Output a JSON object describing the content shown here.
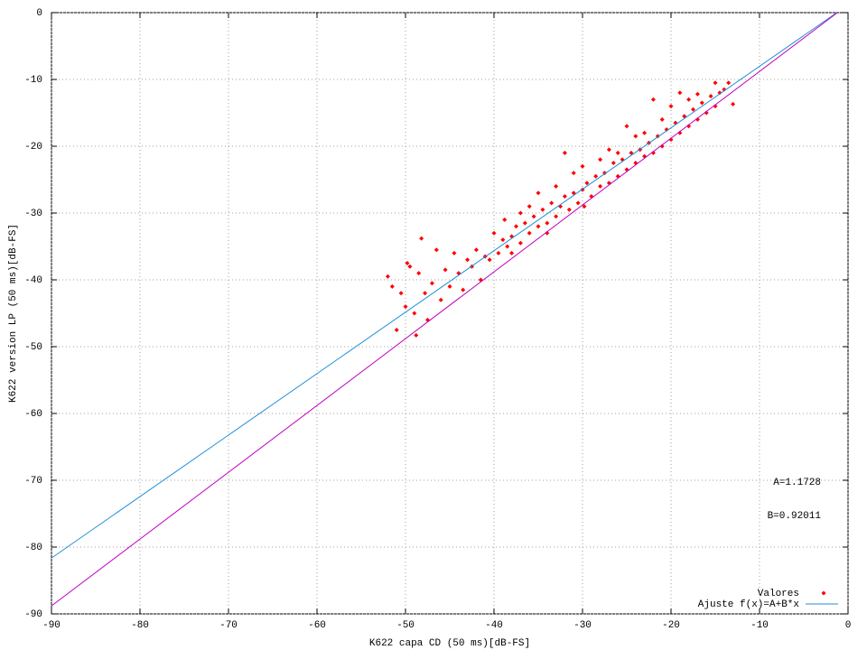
{
  "chart_data": {
    "type": "scatter",
    "xlabel": "K622 capa CD (50 ms)[dB-FS]",
    "ylabel": "K622 version LP (50 ms)[dB-FS]",
    "xlim": [
      -90,
      0
    ],
    "ylim": [
      -90,
      0
    ],
    "xticks": [
      -90,
      -80,
      -70,
      -60,
      -50,
      -40,
      -30,
      -20,
      -10,
      0
    ],
    "yticks": [
      -90,
      -80,
      -70,
      -60,
      -50,
      -40,
      -30,
      -20,
      -10,
      0
    ],
    "grid": true,
    "legend": "bottom-right",
    "annotations": [
      "A=1.1728",
      "B=0.92011"
    ],
    "series": [
      {
        "name": "Valores",
        "mode": "markers",
        "color": "#ff0000",
        "x": [
          -52,
          -51.5,
          -51,
          -50.5,
          -50,
          -49.8,
          -49.5,
          -49,
          -48.8,
          -48.5,
          -48.2,
          -47.8,
          -47.5,
          -47,
          -46.5,
          -46,
          -45.5,
          -45,
          -44.5,
          -44,
          -43.5,
          -43,
          -42.5,
          -42,
          -41.5,
          -41,
          -40.5,
          -40,
          -39.5,
          -39,
          -38.8,
          -38.5,
          -38,
          -37.5,
          -37,
          -36.5,
          -36,
          -35.5,
          -35,
          -34.5,
          -34,
          -33.5,
          -33,
          -32.5,
          -32,
          -31.5,
          -31,
          -30.5,
          -30,
          -29.8,
          -29.5,
          -29,
          -28.5,
          -28,
          -27.5,
          -27,
          -26.5,
          -26,
          -25.5,
          -25,
          -24.5,
          -24,
          -23.5,
          -23,
          -22.5,
          -22,
          -21.5,
          -21,
          -20.5,
          -20,
          -19.5,
          -19,
          -18.5,
          -18,
          -17.5,
          -17,
          -16.5,
          -16,
          -15.5,
          -15,
          -14.5,
          -14,
          -13.5,
          -13,
          -32,
          -22,
          -25,
          -28,
          -35,
          -31,
          -20,
          -19,
          -24,
          -27,
          -33,
          -36,
          -30,
          -37,
          -38,
          -34,
          -26,
          -21,
          -23,
          -18,
          -17,
          -15
        ],
        "values": [
          -39.5,
          -41,
          -47.5,
          -42,
          -44,
          -37.5,
          -38,
          -45,
          -48.3,
          -39,
          -33.8,
          -42,
          -46,
          -40.5,
          -35.5,
          -43,
          -38.5,
          -41,
          -36,
          -39,
          -41.5,
          -37,
          -38,
          -35.5,
          -40,
          -36.5,
          -37,
          -33,
          -36,
          -34,
          -31,
          -35,
          -33.5,
          -32,
          -34.5,
          -31.5,
          -33,
          -30.5,
          -32,
          -29.5,
          -31.5,
          -28.5,
          -30.5,
          -29,
          -27.5,
          -29.5,
          -27,
          -28.5,
          -26.5,
          -29,
          -25.5,
          -27.5,
          -24.5,
          -26,
          -24,
          -25.5,
          -22.5,
          -24.5,
          -22,
          -23.5,
          -21,
          -22.5,
          -20.5,
          -21.5,
          -19.5,
          -21,
          -18.5,
          -20,
          -17.5,
          -19,
          -16.5,
          -18,
          -15.5,
          -17,
          -14.5,
          -16,
          -13.5,
          -15,
          -12.5,
          -14,
          -12,
          -11.5,
          -10.5,
          -13.7,
          -21,
          -13,
          -17,
          -22,
          -27,
          -24,
          -14,
          -12,
          -18.5,
          -20.5,
          -26,
          -29,
          -23,
          -30,
          -36,
          -33,
          -21,
          -16,
          -18,
          -13,
          -12.2,
          -10.5
        ]
      },
      {
        "name": "Ajuste f(x)=A+B*x",
        "mode": "line",
        "color": "#1f8fd8",
        "x": [
          -90,
          -1.2746
        ],
        "values": [
          -81.64,
          0
        ]
      },
      {
        "mode": "line",
        "color": "#c000c0",
        "x": [
          -90,
          -1.2
        ],
        "values": [
          -88.8,
          0
        ]
      }
    ]
  }
}
